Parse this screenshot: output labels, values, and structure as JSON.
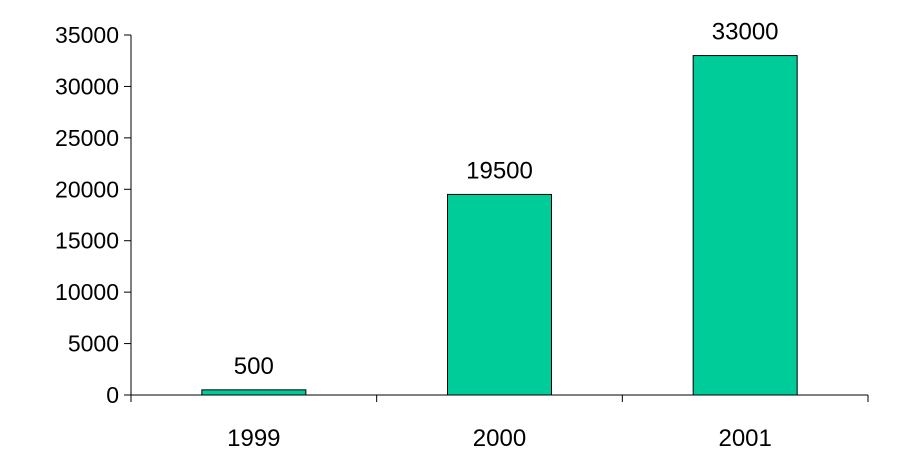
{
  "chart_data": {
    "type": "bar",
    "categories": [
      "1999",
      "2000",
      "2001"
    ],
    "values": [
      500,
      19500,
      33000
    ],
    "data_labels": [
      "500",
      "19500",
      "33000"
    ],
    "yticks": [
      "0",
      "5000",
      "10000",
      "15000",
      "20000",
      "25000",
      "30000",
      "35000"
    ],
    "ylim": [
      0,
      35000
    ],
    "grid": false,
    "legend": "none",
    "bar_color": "#00CC99",
    "bar_stroke": "#000000"
  }
}
